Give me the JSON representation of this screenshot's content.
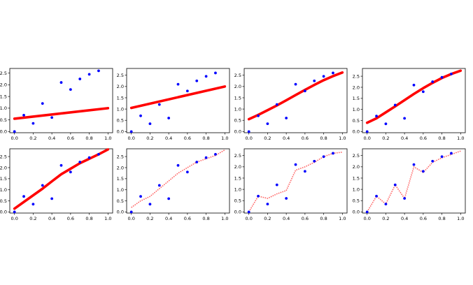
{
  "figure": {
    "points": {
      "x": [
        0.0,
        0.1,
        0.2,
        0.3,
        0.4,
        0.5,
        0.6,
        0.7,
        0.8,
        0.9
      ],
      "y": [
        0.0,
        0.7,
        0.35,
        1.2,
        0.6,
        2.1,
        1.8,
        2.25,
        2.45,
        2.6
      ]
    }
  },
  "colors": {
    "points": "#0000ff",
    "fit": "#ff0000",
    "fit_light": "#ff6666",
    "axis": "#000000"
  },
  "chart_data": [
    {
      "type": "scatter",
      "title": "",
      "xlabel": "",
      "ylabel": "",
      "xlim": [
        -0.05,
        1.05
      ],
      "ylim": [
        -0.05,
        2.7
      ],
      "xticks": [
        "0.0",
        "0.2",
        "0.4",
        "0.6",
        "0.8",
        "1.0"
      ],
      "yticks": [
        "0.0",
        "0.5",
        "1.0",
        "1.5",
        "2.0",
        "2.5"
      ],
      "grid": false,
      "fit_curve": {
        "style": "solid-thick",
        "x": [
          0.0,
          1.0
        ],
        "y": [
          0.55,
          1.0
        ]
      }
    },
    {
      "type": "scatter",
      "title": "",
      "xlabel": "",
      "ylabel": "",
      "xlim": [
        -0.05,
        1.05
      ],
      "ylim": [
        -0.05,
        2.8
      ],
      "xticks": [
        "0.0",
        "0.2",
        "0.4",
        "0.6",
        "0.8",
        "1.0"
      ],
      "yticks": [
        "0.0",
        "0.5",
        "1.0",
        "1.5",
        "2.0",
        "2.5"
      ],
      "grid": false,
      "fit_curve": {
        "style": "solid-thick",
        "x": [
          0.0,
          1.0
        ],
        "y": [
          1.05,
          2.0
        ]
      }
    },
    {
      "type": "scatter",
      "title": "",
      "xlabel": "",
      "ylabel": "",
      "xlim": [
        -0.05,
        1.05
      ],
      "ylim": [
        -0.05,
        2.8
      ],
      "xticks": [
        "0.0",
        "0.2",
        "0.4",
        "0.6",
        "0.8",
        "1.0"
      ],
      "yticks": [
        "0.0",
        "0.5",
        "1.0",
        "1.5",
        "2.0",
        "2.5"
      ],
      "grid": false,
      "fit_curve": {
        "style": "solid-thick",
        "x": [
          0.0,
          0.1,
          0.2,
          0.3,
          0.4,
          0.5,
          0.6,
          0.7,
          0.8,
          0.9,
          1.0
        ],
        "y": [
          0.55,
          0.74,
          0.95,
          1.16,
          1.39,
          1.62,
          1.85,
          2.07,
          2.28,
          2.46,
          2.62
        ]
      }
    },
    {
      "type": "scatter",
      "title": "",
      "xlabel": "",
      "ylabel": "",
      "xlim": [
        -0.05,
        1.05
      ],
      "ylim": [
        -0.05,
        2.85
      ],
      "xticks": [
        "0.0",
        "0.2",
        "0.4",
        "0.6",
        "0.8",
        "1.0"
      ],
      "yticks": [
        "0.0",
        "0.5",
        "1.0",
        "1.5",
        "2.0",
        "2.5"
      ],
      "grid": false,
      "fit_curve": {
        "style": "solid-thick",
        "x": [
          0.0,
          0.1,
          0.2,
          0.3,
          0.4,
          0.5,
          0.6,
          0.7,
          0.8,
          0.9,
          1.0
        ],
        "y": [
          0.4,
          0.6,
          0.87,
          1.14,
          1.42,
          1.7,
          1.96,
          2.2,
          2.42,
          2.6,
          2.75
        ]
      }
    },
    {
      "type": "scatter",
      "title": "",
      "xlabel": "",
      "ylabel": "",
      "xlim": [
        -0.05,
        1.05
      ],
      "ylim": [
        -0.05,
        2.85
      ],
      "xticks": [
        "0.0",
        "0.2",
        "0.4",
        "0.6",
        "0.8",
        "1.0"
      ],
      "yticks": [
        "0.0",
        "0.5",
        "1.0",
        "1.5",
        "2.0",
        "2.5"
      ],
      "grid": false,
      "fit_curve": {
        "style": "solid-thick",
        "x": [
          0.0,
          0.1,
          0.2,
          0.3,
          0.4,
          0.5,
          0.6,
          0.7,
          0.8,
          0.9,
          1.0
        ],
        "y": [
          0.15,
          0.45,
          0.75,
          1.05,
          1.38,
          1.7,
          1.95,
          2.2,
          2.4,
          2.6,
          2.82
        ]
      }
    },
    {
      "type": "scatter",
      "title": "",
      "xlabel": "",
      "ylabel": "",
      "xlim": [
        -0.05,
        1.05
      ],
      "ylim": [
        -0.05,
        2.85
      ],
      "xticks": [
        "0.0",
        "0.2",
        "0.4",
        "0.6",
        "0.8",
        "1.0"
      ],
      "yticks": [
        "0.0",
        "0.5",
        "1.0",
        "1.5",
        "2.0",
        "2.5"
      ],
      "grid": false,
      "fit_curve": {
        "style": "dotted",
        "x": [
          0.0,
          0.1,
          0.2,
          0.3,
          0.4,
          0.5,
          0.6,
          0.7,
          0.8,
          0.9,
          1.0
        ],
        "y": [
          0.2,
          0.5,
          0.7,
          1.05,
          1.4,
          1.75,
          2.0,
          2.25,
          2.4,
          2.55,
          2.8
        ]
      }
    },
    {
      "type": "scatter",
      "title": "",
      "xlabel": "",
      "ylabel": "",
      "xlim": [
        -0.05,
        1.05
      ],
      "ylim": [
        -0.05,
        2.8
      ],
      "xticks": [
        "0.0",
        "0.2",
        "0.4",
        "0.6",
        "0.8",
        "1.0"
      ],
      "yticks": [
        "0.0",
        "0.5",
        "1.0",
        "1.5",
        "2.0",
        "2.5"
      ],
      "grid": false,
      "fit_curve": {
        "style": "dotted",
        "x": [
          0.0,
          0.1,
          0.2,
          0.3,
          0.4,
          0.5,
          0.6,
          0.7,
          0.8,
          0.9,
          1.0
        ],
        "y": [
          0.0,
          0.7,
          0.6,
          0.8,
          0.95,
          1.85,
          2.0,
          2.2,
          2.45,
          2.6,
          2.65
        ]
      }
    },
    {
      "type": "scatter",
      "title": "",
      "xlabel": "",
      "ylabel": "",
      "xlim": [
        -0.05,
        1.05
      ],
      "ylim": [
        -0.05,
        2.8
      ],
      "xticks": [
        "0.0",
        "0.2",
        "0.4",
        "0.6",
        "0.8",
        "1.0"
      ],
      "yticks": [
        "0.0",
        "0.5",
        "1.0",
        "1.5",
        "2.0",
        "2.5"
      ],
      "grid": false,
      "fit_curve": {
        "style": "dotted",
        "x": [
          0.0,
          0.1,
          0.2,
          0.3,
          0.4,
          0.5,
          0.6,
          0.7,
          0.8,
          0.9,
          1.0
        ],
        "y": [
          0.0,
          0.7,
          0.35,
          1.2,
          0.6,
          2.0,
          1.75,
          2.2,
          2.4,
          2.55,
          2.7
        ]
      }
    }
  ]
}
